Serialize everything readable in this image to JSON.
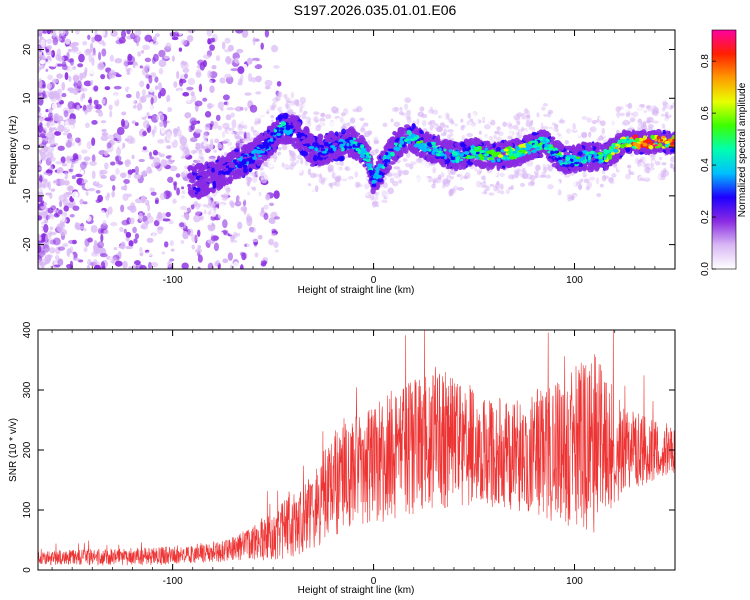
{
  "title": "S197.2026.035.01.01.E06",
  "chart_data": [
    {
      "type": "heatmap",
      "xlabel": "Height of straight line (km)",
      "ylabel": "Frequency (Hz)",
      "xlim": [
        -167,
        150
      ],
      "ylim": [
        -25,
        24
      ],
      "x_ticks": [
        -100,
        0,
        100
      ],
      "y_ticks": [
        -20,
        -10,
        0,
        10,
        20
      ],
      "colorbar": {
        "label": "Normalized spectral amplitude",
        "range": [
          0,
          0.92
        ],
        "ticks": [
          0.0,
          0.2,
          0.4,
          0.6,
          0.8
        ],
        "colors": [
          "#ffffff",
          "#d9b8f5",
          "#8a2be2",
          "#1e00ff",
          "#00bfff",
          "#00ffb0",
          "#3cff00",
          "#e8ff00",
          "#ff9a00",
          "#ff2000",
          "#ff00a0"
        ]
      },
      "ridge": [
        {
          "x": -85,
          "y": -7,
          "a": 0.22
        },
        {
          "x": -70,
          "y": -4,
          "a": 0.3
        },
        {
          "x": -60,
          "y": -2,
          "a": 0.35
        },
        {
          "x": -52,
          "y": 1,
          "a": 0.35
        },
        {
          "x": -45,
          "y": 4,
          "a": 0.4
        },
        {
          "x": -38,
          "y": 3,
          "a": 0.28
        },
        {
          "x": -30,
          "y": -1,
          "a": 0.3
        },
        {
          "x": -20,
          "y": 0,
          "a": 0.35
        },
        {
          "x": -10,
          "y": 1,
          "a": 0.4
        },
        {
          "x": -3,
          "y": -2,
          "a": 0.45
        },
        {
          "x": 0,
          "y": -7,
          "a": 0.45
        },
        {
          "x": 10,
          "y": 0,
          "a": 0.4
        },
        {
          "x": 18,
          "y": 2,
          "a": 0.45
        },
        {
          "x": 28,
          "y": 0,
          "a": 0.45
        },
        {
          "x": 40,
          "y": -2,
          "a": 0.45
        },
        {
          "x": 50,
          "y": -1,
          "a": 0.5
        },
        {
          "x": 60,
          "y": -2,
          "a": 0.55
        },
        {
          "x": 72,
          "y": -1,
          "a": 0.6
        },
        {
          "x": 85,
          "y": 1,
          "a": 0.5
        },
        {
          "x": 95,
          "y": -3,
          "a": 0.45
        },
        {
          "x": 105,
          "y": -2,
          "a": 0.45
        },
        {
          "x": 115,
          "y": -2,
          "a": 0.55
        },
        {
          "x": 125,
          "y": 1,
          "a": 0.7
        },
        {
          "x": 135,
          "y": 1,
          "a": 0.85
        },
        {
          "x": 150,
          "y": 1,
          "a": 0.8
        }
      ]
    },
    {
      "type": "line",
      "xlabel": "Height of straight line (km)",
      "ylabel": "SNR (10 * v/v)",
      "xlim": [
        -167,
        150
      ],
      "ylim": [
        0,
        400
      ],
      "x_ticks": [
        -100,
        0,
        100
      ],
      "y_ticks": [
        0,
        100,
        200,
        300,
        400
      ],
      "color": "#ee3333",
      "envelope": [
        {
          "x": -167,
          "mean": 20,
          "spread": 12
        },
        {
          "x": -120,
          "mean": 22,
          "spread": 15
        },
        {
          "x": -90,
          "mean": 25,
          "spread": 15
        },
        {
          "x": -70,
          "mean": 35,
          "spread": 20
        },
        {
          "x": -50,
          "mean": 55,
          "spread": 40
        },
        {
          "x": -30,
          "mean": 100,
          "spread": 70
        },
        {
          "x": -20,
          "mean": 140,
          "spread": 90
        },
        {
          "x": -10,
          "mean": 165,
          "spread": 90
        },
        {
          "x": 0,
          "mean": 175,
          "spread": 100
        },
        {
          "x": 15,
          "mean": 200,
          "spread": 110
        },
        {
          "x": 30,
          "mean": 220,
          "spread": 120
        },
        {
          "x": 50,
          "mean": 205,
          "spread": 100
        },
        {
          "x": 70,
          "mean": 190,
          "spread": 90
        },
        {
          "x": 90,
          "mean": 200,
          "spread": 120
        },
        {
          "x": 110,
          "mean": 210,
          "spread": 150
        },
        {
          "x": 125,
          "mean": 200,
          "spread": 70
        },
        {
          "x": 150,
          "mean": 200,
          "spread": 40
        }
      ]
    }
  ]
}
